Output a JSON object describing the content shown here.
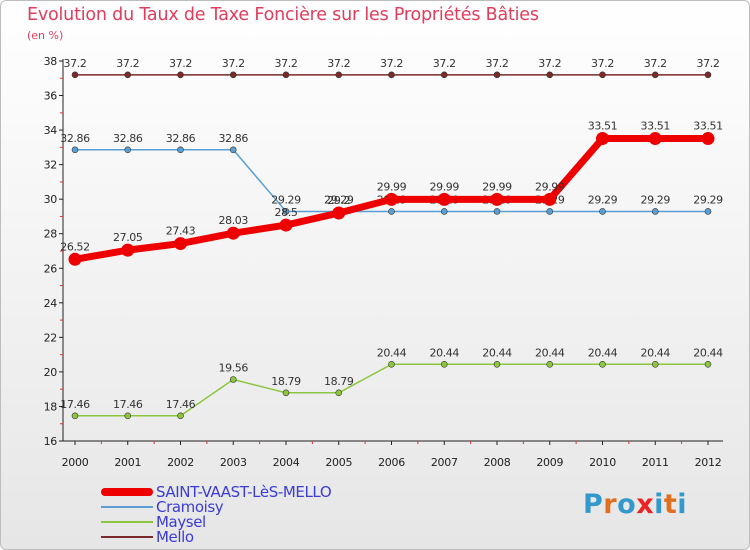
{
  "title": "Evolution du Taux de Taxe Foncière sur les Propriétés Bâties",
  "unit": "(en %)",
  "logo": {
    "text": "Proxiti",
    "colors": [
      "#3399cc",
      "#e07020",
      "#3399cc",
      "#ee2222",
      "#3399cc",
      "#e07020",
      "#3399cc"
    ]
  },
  "chart_data": {
    "type": "line",
    "title": "Evolution du Taux de Taxe Foncière sur les Propriétés Bâties",
    "ylabel": "(en %)",
    "xlabel": "",
    "ylim": [
      16,
      38
    ],
    "yticks": [
      16,
      18,
      20,
      22,
      24,
      26,
      28,
      30,
      32,
      34,
      36,
      38
    ],
    "categories": [
      "2000",
      "2001",
      "2002",
      "2003",
      "2004",
      "2005",
      "2006",
      "2007",
      "2008",
      "2009",
      "2010",
      "2011",
      "2012"
    ],
    "grid": false,
    "legend_position": "bottom-left",
    "series": [
      {
        "name": "Mello",
        "color": "#7a2a2a",
        "width": 1.5,
        "values": [
          37.2,
          37.2,
          37.2,
          37.2,
          37.2,
          37.2,
          37.2,
          37.2,
          37.2,
          37.2,
          37.2,
          37.2,
          37.2
        ],
        "labels": [
          "37.2",
          "37.2",
          "37.2",
          "37.2",
          "37.2",
          "37.2",
          "37.2",
          "37.2",
          "37.2",
          "37.2",
          "37.2",
          "37.2",
          "37.2"
        ]
      },
      {
        "name": "Cramoisy",
        "color": "#5a9fd4",
        "width": 1.5,
        "values": [
          32.86,
          32.86,
          32.86,
          32.86,
          29.29,
          29.29,
          29.29,
          29.29,
          29.29,
          29.29,
          29.29,
          29.29,
          29.29
        ],
        "labels": [
          "32.86",
          "32.86",
          "32.86",
          "32.86",
          "29.29",
          "29.29",
          "29.29",
          "29.29",
          "29.29",
          "29.29",
          "29.29",
          "29.29",
          "29.29"
        ]
      },
      {
        "name": "Maysel",
        "color": "#8cc63f",
        "width": 1.5,
        "values": [
          17.46,
          17.46,
          17.46,
          19.56,
          18.79,
          18.79,
          20.44,
          20.44,
          20.44,
          20.44,
          20.44,
          20.44,
          20.44
        ],
        "labels": [
          "17.46",
          "17.46",
          "17.46",
          "19.56",
          "18.79",
          "18.79",
          "20.44",
          "20.44",
          "20.44",
          "20.44",
          "20.44",
          "20.44",
          "20.44"
        ]
      },
      {
        "name": "SAINT-VAAST-LèS-MELLO",
        "color": "#ee0000",
        "width": 7,
        "values": [
          26.52,
          27.05,
          27.43,
          28.03,
          28.5,
          29.2,
          29.99,
          29.99,
          29.99,
          29.99,
          33.51,
          33.51,
          33.51
        ],
        "labels": [
          "26.52",
          "27.05",
          "27.43",
          "28.03",
          "28.5",
          "29.2",
          "29.99",
          "29.99",
          "29.99",
          "29.99",
          "33.51",
          "33.51",
          "33.51"
        ]
      }
    ]
  }
}
